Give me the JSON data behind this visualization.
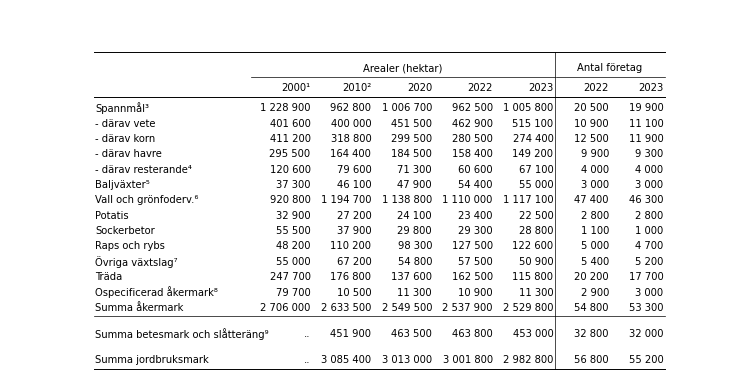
{
  "header_group1": "Arealer (hektar)",
  "header_group2": "Antal företag",
  "col_headers": [
    "2000¹",
    "2010²",
    "2020",
    "2022",
    "2023",
    "2022",
    "2023"
  ],
  "rows": [
    {
      "label": "Spannmål³",
      "values": [
        "1 228 900",
        "962 800",
        "1 006 700",
        "962 500",
        "1 005 800",
        "20 500",
        "19 900"
      ]
    },
    {
      "label": "- därav vete",
      "values": [
        "401 600",
        "400 000",
        "451 500",
        "462 900",
        "515 100",
        "10 900",
        "11 100"
      ]
    },
    {
      "label": "- därav korn",
      "values": [
        "411 200",
        "318 800",
        "299 500",
        "280 500",
        "274 400",
        "12 500",
        "11 900"
      ]
    },
    {
      "label": "- därav havre",
      "values": [
        "295 500",
        "164 400",
        "184 500",
        "158 400",
        "149 200",
        "9 900",
        "9 300"
      ]
    },
    {
      "label": "- därav resterande⁴",
      "values": [
        "120 600",
        "79 600",
        "71 300",
        "60 600",
        "67 100",
        "4 000",
        "4 000"
      ]
    },
    {
      "label": "Baljväxter⁵",
      "values": [
        "37 300",
        "46 100",
        "47 900",
        "54 400",
        "55 000",
        "3 000",
        "3 000"
      ]
    },
    {
      "label": "Vall och grönfoderv.⁶",
      "values": [
        "920 800",
        "1 194 700",
        "1 138 800",
        "1 110 000",
        "1 117 100",
        "47 400",
        "46 300"
      ]
    },
    {
      "label": "Potatis",
      "values": [
        "32 900",
        "27 200",
        "24 100",
        "23 400",
        "22 500",
        "2 800",
        "2 800"
      ]
    },
    {
      "label": "Sockerbetor",
      "values": [
        "55 500",
        "37 900",
        "29 800",
        "29 300",
        "28 800",
        "1 100",
        "1 000"
      ]
    },
    {
      "label": "Raps och rybs",
      "values": [
        "48 200",
        "110 200",
        "98 300",
        "127 500",
        "122 600",
        "5 000",
        "4 700"
      ]
    },
    {
      "label": "Övriga växtslag⁷",
      "values": [
        "55 000",
        "67 200",
        "54 800",
        "57 500",
        "50 900",
        "5 400",
        "5 200"
      ]
    },
    {
      "label": "Träda",
      "values": [
        "247 700",
        "176 800",
        "137 600",
        "162 500",
        "115 800",
        "20 200",
        "17 700"
      ]
    },
    {
      "label": "Ospecificerad åkermark⁸",
      "values": [
        "79 700",
        "10 500",
        "11 300",
        "10 900",
        "11 300",
        "2 900",
        "3 000"
      ]
    },
    {
      "label": "Summa åkermark",
      "values": [
        "2 706 000",
        "2 633 500",
        "2 549 500",
        "2 537 900",
        "2 529 800",
        "54 800",
        "53 300"
      ]
    },
    {
      "label": "Summa betesmark och slåtteräng⁹",
      "values": [
        "..",
        "451 900",
        "463 500",
        "463 800",
        "453 000",
        "32 800",
        "32 000"
      ]
    },
    {
      "label": "Summa jordbruksmark",
      "values": [
        "..",
        "3 085 400",
        "3 013 000",
        "3 001 800",
        "2 982 800",
        "56 800",
        "55 200"
      ]
    }
  ],
  "bg_color": "#ffffff",
  "text_color": "#000000",
  "font_size": 7.2,
  "header_font_size": 7.2
}
